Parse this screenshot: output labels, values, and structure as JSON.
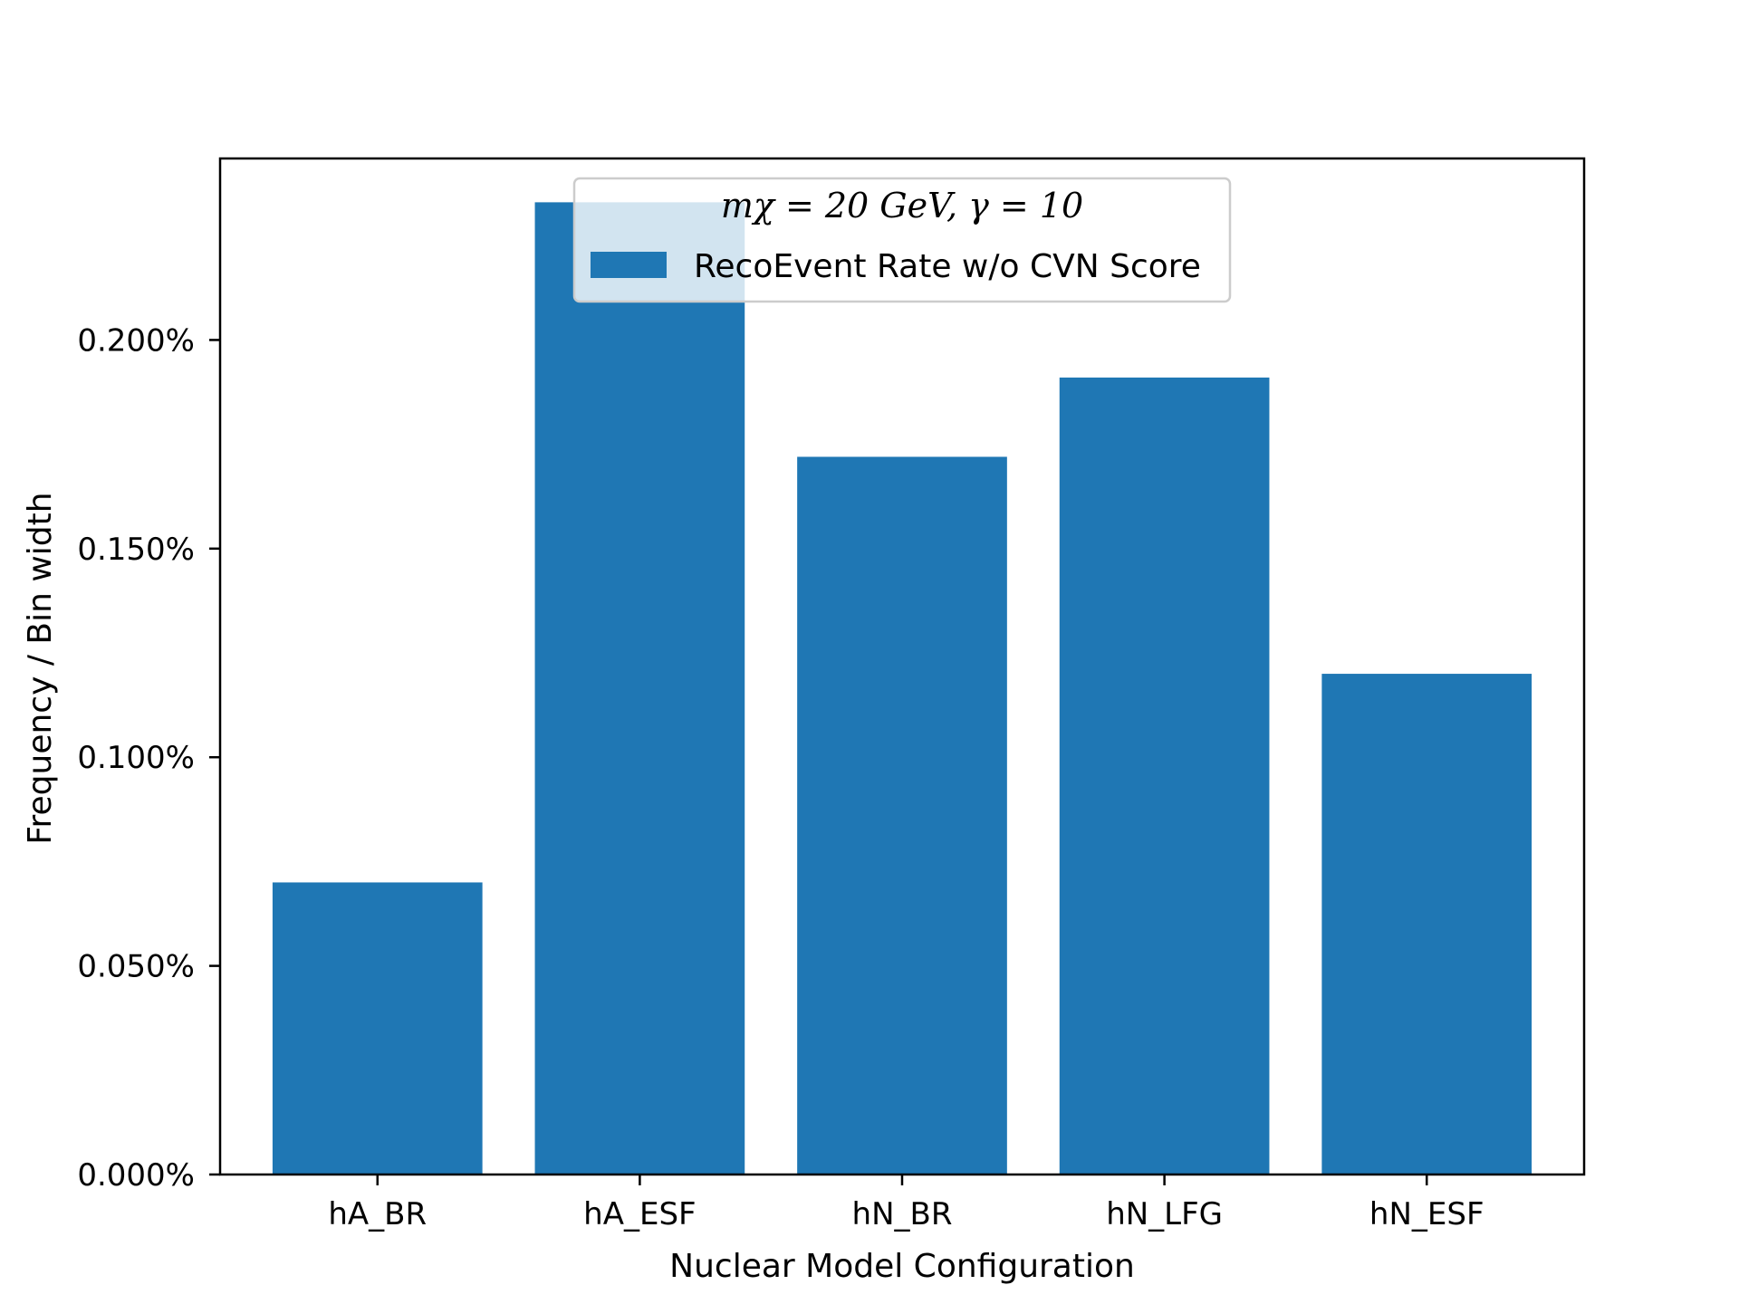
{
  "chart_data": {
    "type": "bar",
    "categories": [
      "hA_BR",
      "hA_ESF",
      "hN_BR",
      "hN_LFG",
      "hN_ESF"
    ],
    "series": [
      {
        "name": "RecoEvent Rate w/o CVN Score",
        "values": [
          0.07,
          0.233,
          0.172,
          0.191,
          0.12
        ]
      }
    ],
    "ylim": [
      0,
      0.2435
    ],
    "yticks": [
      0.0,
      0.05,
      0.1,
      0.15,
      0.2
    ],
    "ytick_labels": [
      "0.000%",
      "0.050%",
      "0.100%",
      "0.150%",
      "0.200%"
    ],
    "xlabel": "Nuclear Model Configuration",
    "ylabel": "Frequency / Bin width",
    "legend_title": "mχ = 20  GeV, γ = 10",
    "legend_position": "top-center",
    "bar_color": "#1f77b4",
    "grid": false
  }
}
